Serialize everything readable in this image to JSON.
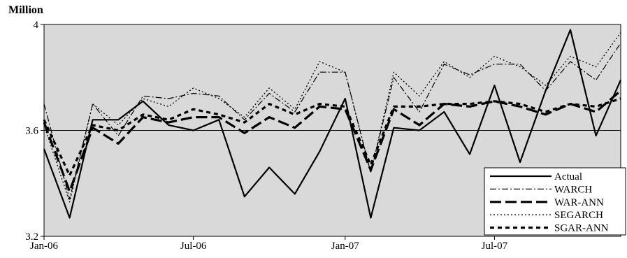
{
  "chart_data": {
    "type": "line",
    "ylabel": "Million",
    "ylim": [
      3.2,
      4.0
    ],
    "yticks": [
      "3.2",
      "3.6",
      "4"
    ],
    "xticks": [
      {
        "label": "Jan-06",
        "date": "2006-01-01"
      },
      {
        "label": "Jul-06",
        "date": "2006-07-01"
      },
      {
        "label": "Jan-07",
        "date": "2007-01-01"
      },
      {
        "label": "Jul-07",
        "date": "2007-07-01"
      }
    ],
    "xlim": [
      "2006-01-01",
      "2007-12-01"
    ],
    "reference_line": 3.6,
    "grid": false,
    "background": "#d9d9d9",
    "legend_position": "bottom-right",
    "x": [
      "2006-01-01",
      "2006-02-01",
      "2006-03-01",
      "2006-04-01",
      "2006-05-01",
      "2006-06-01",
      "2006-07-01",
      "2006-08-01",
      "2006-09-01",
      "2006-10-01",
      "2006-11-01",
      "2006-12-01",
      "2007-01-01",
      "2007-02-01",
      "2007-03-01",
      "2007-04-01",
      "2007-05-01",
      "2007-06-01",
      "2007-07-01",
      "2007-08-01",
      "2007-09-01",
      "2007-10-01",
      "2007-11-01",
      "2007-12-01"
    ],
    "series": [
      {
        "name": "Actual",
        "style": "solid",
        "values": [
          3.53,
          3.27,
          3.64,
          3.64,
          3.71,
          3.62,
          3.6,
          3.64,
          3.35,
          3.46,
          3.36,
          3.52,
          3.72,
          3.27,
          3.61,
          3.6,
          3.67,
          3.51,
          3.77,
          3.48,
          3.75,
          3.98,
          3.58,
          3.79
        ]
      },
      {
        "name": "WARCH",
        "style": "dashdot",
        "values": [
          3.7,
          3.34,
          3.7,
          3.58,
          3.73,
          3.72,
          3.74,
          3.73,
          3.64,
          3.74,
          3.67,
          3.82,
          3.82,
          3.44,
          3.8,
          3.67,
          3.85,
          3.81,
          3.85,
          3.85,
          3.75,
          3.86,
          3.79,
          3.93
        ]
      },
      {
        "name": "WAR-ANN",
        "style": "longdash",
        "values": [
          3.63,
          3.37,
          3.61,
          3.55,
          3.65,
          3.63,
          3.65,
          3.65,
          3.59,
          3.65,
          3.61,
          3.69,
          3.68,
          3.45,
          3.68,
          3.62,
          3.7,
          3.69,
          3.71,
          3.69,
          3.66,
          3.7,
          3.67,
          3.75
        ]
      },
      {
        "name": "SEGARCH",
        "style": "dotted",
        "values": [
          3.62,
          3.33,
          3.7,
          3.62,
          3.72,
          3.69,
          3.76,
          3.72,
          3.65,
          3.76,
          3.68,
          3.86,
          3.82,
          3.44,
          3.82,
          3.73,
          3.86,
          3.8,
          3.88,
          3.84,
          3.77,
          3.88,
          3.84,
          3.97
        ]
      },
      {
        "name": "SGAR-ANN",
        "style": "shortdash",
        "values": [
          3.64,
          3.43,
          3.62,
          3.6,
          3.66,
          3.64,
          3.68,
          3.66,
          3.63,
          3.7,
          3.66,
          3.7,
          3.69,
          3.47,
          3.69,
          3.69,
          3.7,
          3.7,
          3.71,
          3.7,
          3.67,
          3.7,
          3.69,
          3.72
        ]
      }
    ]
  }
}
